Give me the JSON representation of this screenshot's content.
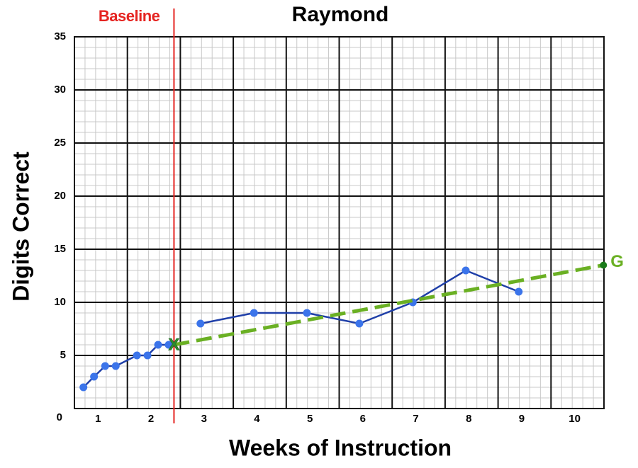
{
  "chart_data": {
    "type": "line",
    "title": "Raymond",
    "x_label": "Weeks of Instruction",
    "y_label": "Digits Correct",
    "xlim": [
      0.5,
      10.5
    ],
    "xticks": [
      1,
      2,
      3,
      4,
      5,
      6,
      7,
      8,
      9,
      10
    ],
    "ylim": [
      0,
      35
    ],
    "yticks": [
      0,
      5,
      10,
      15,
      20,
      25,
      30,
      35
    ],
    "grid": true,
    "phase_line": {
      "label": "Baseline",
      "x": 2.38,
      "color": "#e52421"
    },
    "series": [
      {
        "color": "#1f3fa8",
        "marker_color": "#3b74ea",
        "x": [
          0.67,
          0.87,
          1.08,
          1.28,
          1.68,
          1.88,
          2.08,
          2.28
        ],
        "values": [
          2,
          3,
          4,
          4,
          5,
          5,
          6,
          6
        ]
      },
      {
        "color": "#1f3fa8",
        "marker_color": "#3b74ea",
        "x": [
          2.88,
          3.89,
          4.89,
          5.88,
          6.89,
          7.89,
          8.89
        ],
        "values": [
          8,
          9,
          9,
          8,
          10,
          13,
          11
        ]
      }
    ],
    "goal_line": {
      "color": "#6ab023",
      "dashed": true,
      "x": [
        2.38,
        10.49
      ],
      "values": [
        6,
        13.5
      ],
      "point_labels": [
        "X",
        "G"
      ]
    }
  }
}
